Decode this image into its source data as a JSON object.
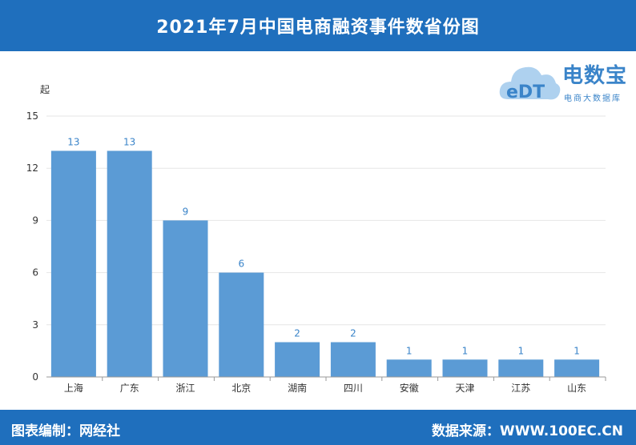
{
  "header": {
    "title": "2021年7月中国电商融资事件数省份图"
  },
  "logo": {
    "brand": "电数宝",
    "sub": "电商大数据库",
    "icon_text": "eDT"
  },
  "footer": {
    "left": "图表编制：网经社",
    "right": "数据来源：WWW.100EC.CN"
  },
  "chart_data": {
    "type": "bar",
    "title": "2021年7月中国电商融资事件数省份图",
    "ylabel": "起",
    "xlabel": "",
    "categories": [
      "上海",
      "广东",
      "浙江",
      "北京",
      "湖南",
      "四川",
      "安徽",
      "天津",
      "江苏",
      "山东"
    ],
    "values": [
      13,
      13,
      9,
      6,
      2,
      2,
      1,
      1,
      1,
      1
    ],
    "ylim": [
      0,
      15
    ],
    "yticks": [
      0,
      3,
      6,
      9,
      12,
      15
    ],
    "grid": true,
    "legend": "none",
    "bar_color": "#5b9bd5",
    "label_color": "#3a84c9"
  }
}
